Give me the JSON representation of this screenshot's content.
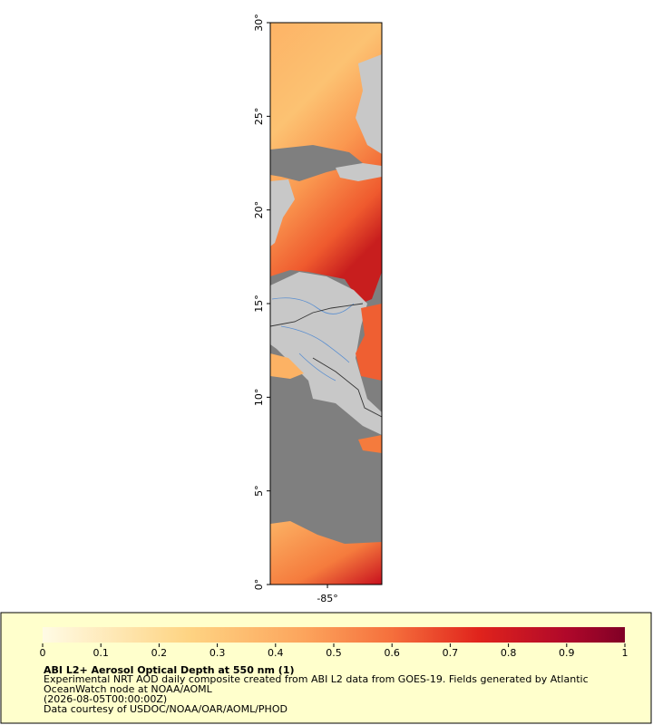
{
  "map": {
    "lat_ticks": [
      {
        "value": 0,
        "label": "0°"
      },
      {
        "value": 5,
        "label": "5°"
      },
      {
        "value": 10,
        "label": "10°"
      },
      {
        "value": 15,
        "label": "15°"
      },
      {
        "value": 20,
        "label": "20°"
      },
      {
        "value": 25,
        "label": "25°"
      },
      {
        "value": 30,
        "label": "30°"
      }
    ],
    "latlim": [
      0,
      30
    ],
    "lon_ticks": [
      {
        "value": -85,
        "label": "-85°"
      }
    ],
    "lonlim": [
      -88.05,
      -82.1
    ]
  },
  "legend": {
    "colorbar_ticks": [
      0,
      0.1,
      0.2,
      0.3,
      0.4,
      0.5,
      0.6,
      0.7,
      0.8,
      0.9,
      1
    ],
    "colorbar_lim": [
      0,
      1
    ],
    "title": "ABI L2+ Aerosol Optical Depth at 550 nm (1)",
    "lines": [
      "Experimental NRT AOD daily composite created from ABI L2 data from GOES-19. Fields generated by Atlantic",
      "OceanWatch node at NOAA/AOML",
      "(2026-08-05T00:00:00Z)",
      "Data courtesy of USDOC/NOAA/OAR/AOML/PHOD"
    ]
  }
}
